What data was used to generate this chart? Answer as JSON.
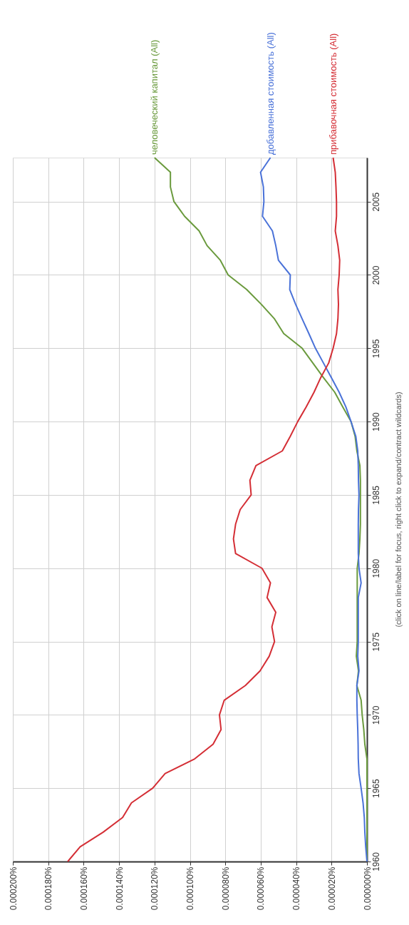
{
  "chart_data": {
    "type": "line",
    "series": [
      {
        "name": "человеческий капитал (All)",
        "color": "#6a9a3d",
        "x": [
          0,
          0,
          0,
          0,
          0,
          0,
          0,
          0,
          1.2e-06,
          1.8e-06,
          2.7e-06,
          3.3e-06,
          5.7e-06,
          4.8e-06,
          6e-06,
          5.5e-06,
          5.5e-06,
          5.5e-06,
          5.5e-06,
          5.5e-06,
          5.5e-06,
          4.5e-06,
          4e-06,
          3.7e-06,
          3.7e-06,
          3.7e-06,
          3.7e-06,
          4e-06,
          5.7e-06,
          6.7e-06,
          9e-06,
          1.37e-05,
          1.82e-05,
          2.46e-05,
          3.06e-05,
          3.66e-05,
          4.7e-05,
          5.22e-05,
          5.97e-05,
          6.79e-05,
          7.84e-05,
          8.28e-05,
          9.03e-05,
          9.48e-05,
          0.000103,
          0.000109,
          0.000111,
          0.000111,
          0.00012
        ],
        "values": [
          1960,
          1961,
          1962,
          1963,
          1964,
          1965,
          1966,
          1967,
          1968,
          1969,
          1970,
          1971,
          1972,
          1973,
          1974,
          1975,
          1976,
          1977,
          1978,
          1979,
          1980,
          1981,
          1982,
          1983,
          1984,
          1985,
          1986,
          1987,
          1988,
          1989,
          1990,
          1991,
          1992,
          1993,
          1994,
          1995,
          1996,
          1997,
          1998,
          1999,
          2000,
          2001,
          2002,
          2003,
          2004,
          2005,
          2006,
          2007,
          2008
        ]
      },
      {
        "name": "добавленная стоимость (All)",
        "color": "#4a72d8",
        "x": [
          0,
          7e-07,
          1.2e-06,
          1.5e-06,
          2.2e-06,
          3.3e-06,
          4.5e-06,
          4.9e-06,
          5e-06,
          5.2e-06,
          5.5e-06,
          5.7e-06,
          5.7e-06,
          4.5e-06,
          5.2e-06,
          4.9e-06,
          4.9e-06,
          4.9e-06,
          4.9e-06,
          3.3e-06,
          4.5e-06,
          4.9e-06,
          4.9e-06,
          4.9e-06,
          4.8e-06,
          4.5e-06,
          4.8e-06,
          4.9e-06,
          5.2e-06,
          6.3e-06,
          9e-06,
          1.19e-05,
          1.57e-05,
          2.01e-05,
          2.46e-05,
          2.91e-05,
          3.28e-05,
          3.66e-05,
          4.03e-05,
          4.36e-05,
          4.33e-05,
          5e-05,
          5.15e-05,
          5.34e-05,
          5.9e-05,
          5.82e-05,
          5.85e-05,
          6.01e-05,
          5.45e-05
        ],
        "values": [
          1960,
          1961,
          1962,
          1963,
          1964,
          1965,
          1966,
          1967,
          1968,
          1969,
          1970,
          1971,
          1972,
          1973,
          1974,
          1975,
          1976,
          1977,
          1978,
          1979,
          1980,
          1981,
          1982,
          1983,
          1984,
          1985,
          1986,
          1987,
          1988,
          1989,
          1990,
          1991,
          1992,
          1993,
          1994,
          1995,
          1996,
          1997,
          1998,
          1999,
          2000,
          2001,
          2002,
          2003,
          2004,
          2005,
          2006,
          2007,
          2008
        ]
      },
      {
        "name": "прибавочная стоимость (All)",
        "color": "#d42e35",
        "x": [
          0.000169,
          0.000162,
          0.000149,
          0.000138,
          0.000133,
          0.000121,
          0.000114,
          9.73e-05,
          8.69e-05,
          8.24e-05,
          8.33e-05,
          8.06e-05,
          6.87e-05,
          6.04e-05,
          5.52e-05,
          5.22e-05,
          5.37e-05,
          5.15e-05,
          5.64e-05,
          5.45e-05,
          5.93e-05,
          7.42e-05,
          7.54e-05,
          7.42e-05,
          7.16e-05,
          6.54e-05,
          6.61e-05,
          6.27e-05,
          4.78e-05,
          4.33e-05,
          3.91e-05,
          3.43e-05,
          2.99e-05,
          2.61e-05,
          2.16e-05,
          1.91e-05,
          1.72e-05,
          1.64e-05,
          1.61e-05,
          1.64e-05,
          1.57e-05,
          1.54e-05,
          1.64e-05,
          1.79e-05,
          1.72e-05,
          1.72e-05,
          1.75e-05,
          1.79e-05,
          1.91e-05
        ],
        "values": [
          1960,
          1961,
          1962,
          1963,
          1964,
          1965,
          1966,
          1967,
          1968,
          1969,
          1970,
          1971,
          1972,
          1973,
          1974,
          1975,
          1976,
          1977,
          1978,
          1979,
          1980,
          1981,
          1982,
          1983,
          1984,
          1985,
          1986,
          1987,
          1988,
          1989,
          1990,
          1991,
          1992,
          1993,
          1994,
          1995,
          1996,
          1997,
          1998,
          1999,
          2000,
          2001,
          2002,
          2003,
          2004,
          2005,
          2006,
          2007,
          2008
        ]
      }
    ],
    "xlim": [
      0.0002,
      0
    ],
    "xticks": [
      {
        "value": 0.0002,
        "label": "0.000200%"
      },
      {
        "value": 0.00018,
        "label": "0.000180%"
      },
      {
        "value": 0.00016,
        "label": "0.000160%"
      },
      {
        "value": 0.00014,
        "label": "0.000140%"
      },
      {
        "value": 0.00012,
        "label": "0.000120%"
      },
      {
        "value": 0.0001,
        "label": "0.000100%"
      },
      {
        "value": 8e-05,
        "label": "0.000080%"
      },
      {
        "value": 6e-05,
        "label": "0.000060%"
      },
      {
        "value": 4e-05,
        "label": "0.000040%"
      },
      {
        "value": 2e-05,
        "label": "0.000020%"
      },
      {
        "value": 0,
        "label": "0.000000%"
      }
    ],
    "ylim": [
      1960,
      2008
    ],
    "yticks": [
      1960,
      1965,
      1970,
      1975,
      1980,
      1985,
      1990,
      1995,
      2000,
      2005
    ],
    "grid": true,
    "legend": false,
    "line_style": "solid",
    "marker": "none",
    "annotations": [
      "(click on line/label for focus, right click to expand/contract wildcards)"
    ]
  }
}
